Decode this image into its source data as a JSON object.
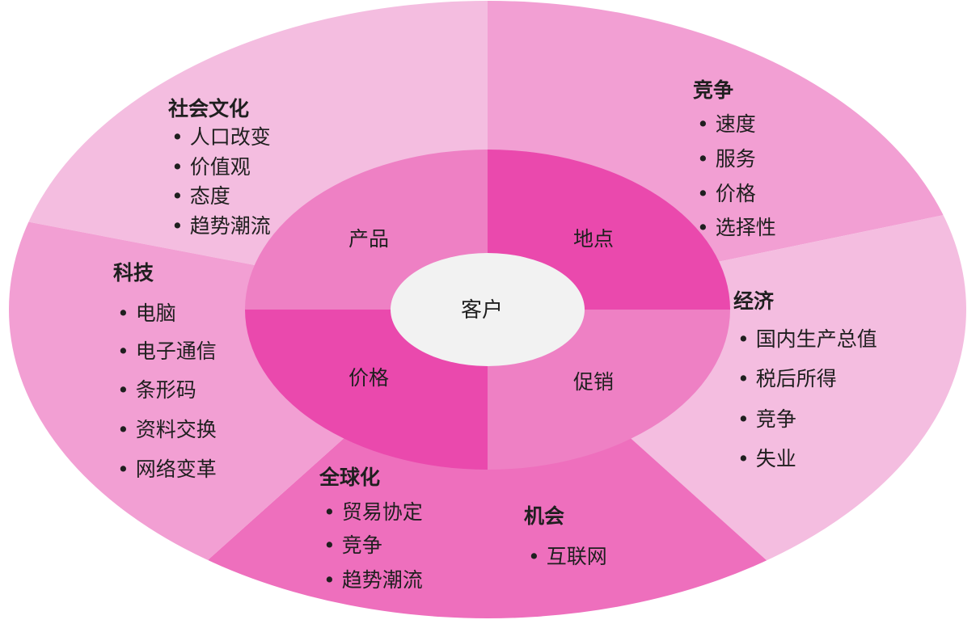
{
  "colors": {
    "outer_light": "#f4bde0",
    "outer_mid": "#f29fd3",
    "outer_dark": "#ee6fbd",
    "inner_light": "#ee80c4",
    "inner_dark": "#ea49ad",
    "center": "#f2f2f2"
  },
  "center": {
    "label": "客户"
  },
  "inner": {
    "product": "产品",
    "place": "地点",
    "price": "价格",
    "promotion": "促销"
  },
  "outer": {
    "sociocultural": {
      "title": "社会文化",
      "bullets": [
        "• 人口改变",
        "• 价值观",
        "• 态度",
        "• 趋势潮流"
      ]
    },
    "competition": {
      "title": "竞争",
      "bullets": [
        "• 速度",
        "• 服务",
        "• 价格",
        "• 选择性"
      ]
    },
    "technology": {
      "title": "科技",
      "bullets": [
        "• 电脑",
        "• 电子通信",
        "• 条形码",
        "• 资料交换",
        "• 网络变革"
      ]
    },
    "economy": {
      "title": "经济",
      "bullets": [
        "• 国内生产总值",
        "• 税后所得",
        "• 竞争",
        "• 失业"
      ]
    },
    "globalization": {
      "title": "全球化",
      "bullets": [
        "• 贸易协定",
        "• 竞争",
        "• 趋势潮流"
      ]
    },
    "opportunity": {
      "title": "机会",
      "bullets": [
        "• 互联网"
      ]
    }
  }
}
